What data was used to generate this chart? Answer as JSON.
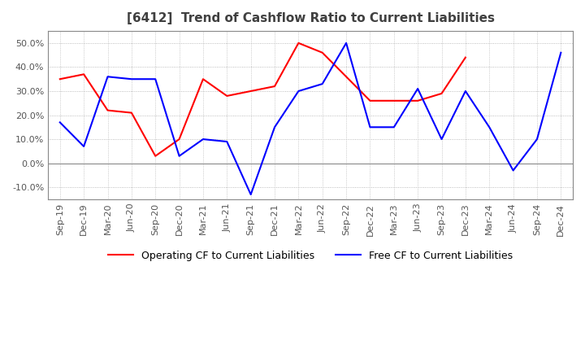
{
  "title": "[6412]  Trend of Cashflow Ratio to Current Liabilities",
  "x_labels": [
    "Sep-19",
    "Dec-19",
    "Mar-20",
    "Jun-20",
    "Sep-20",
    "Dec-20",
    "Mar-21",
    "Jun-21",
    "Sep-21",
    "Dec-21",
    "Mar-22",
    "Jun-22",
    "Sep-22",
    "Dec-22",
    "Mar-23",
    "Jun-23",
    "Sep-23",
    "Dec-23",
    "Mar-24",
    "Jun-24",
    "Sep-24",
    "Dec-24"
  ],
  "operating_cf": [
    35.0,
    37.0,
    22.0,
    21.0,
    3.0,
    10.0,
    35.0,
    28.0,
    30.0,
    32.0,
    50.0,
    46.0,
    36.0,
    26.0,
    26.0,
    26.0,
    29.0,
    44.0,
    null,
    null,
    null,
    null
  ],
  "free_cf": [
    17.0,
    7.0,
    36.0,
    35.0,
    35.0,
    3.0,
    10.0,
    9.0,
    -13.0,
    15.0,
    30.0,
    33.0,
    50.0,
    15.0,
    15.0,
    31.0,
    10.0,
    30.0,
    15.0,
    -3.0,
    10.0,
    46.0
  ],
  "operating_color": "#ff0000",
  "free_color": "#0000ff",
  "ylim": [
    -15.0,
    55.0
  ],
  "yticks": [
    -10.0,
    0.0,
    10.0,
    20.0,
    30.0,
    40.0,
    50.0
  ],
  "legend_operating": "Operating CF to Current Liabilities",
  "legend_free": "Free CF to Current Liabilities",
  "background_color": "#ffffff",
  "grid_color": "#aaaaaa",
  "zero_line_color": "#888888"
}
